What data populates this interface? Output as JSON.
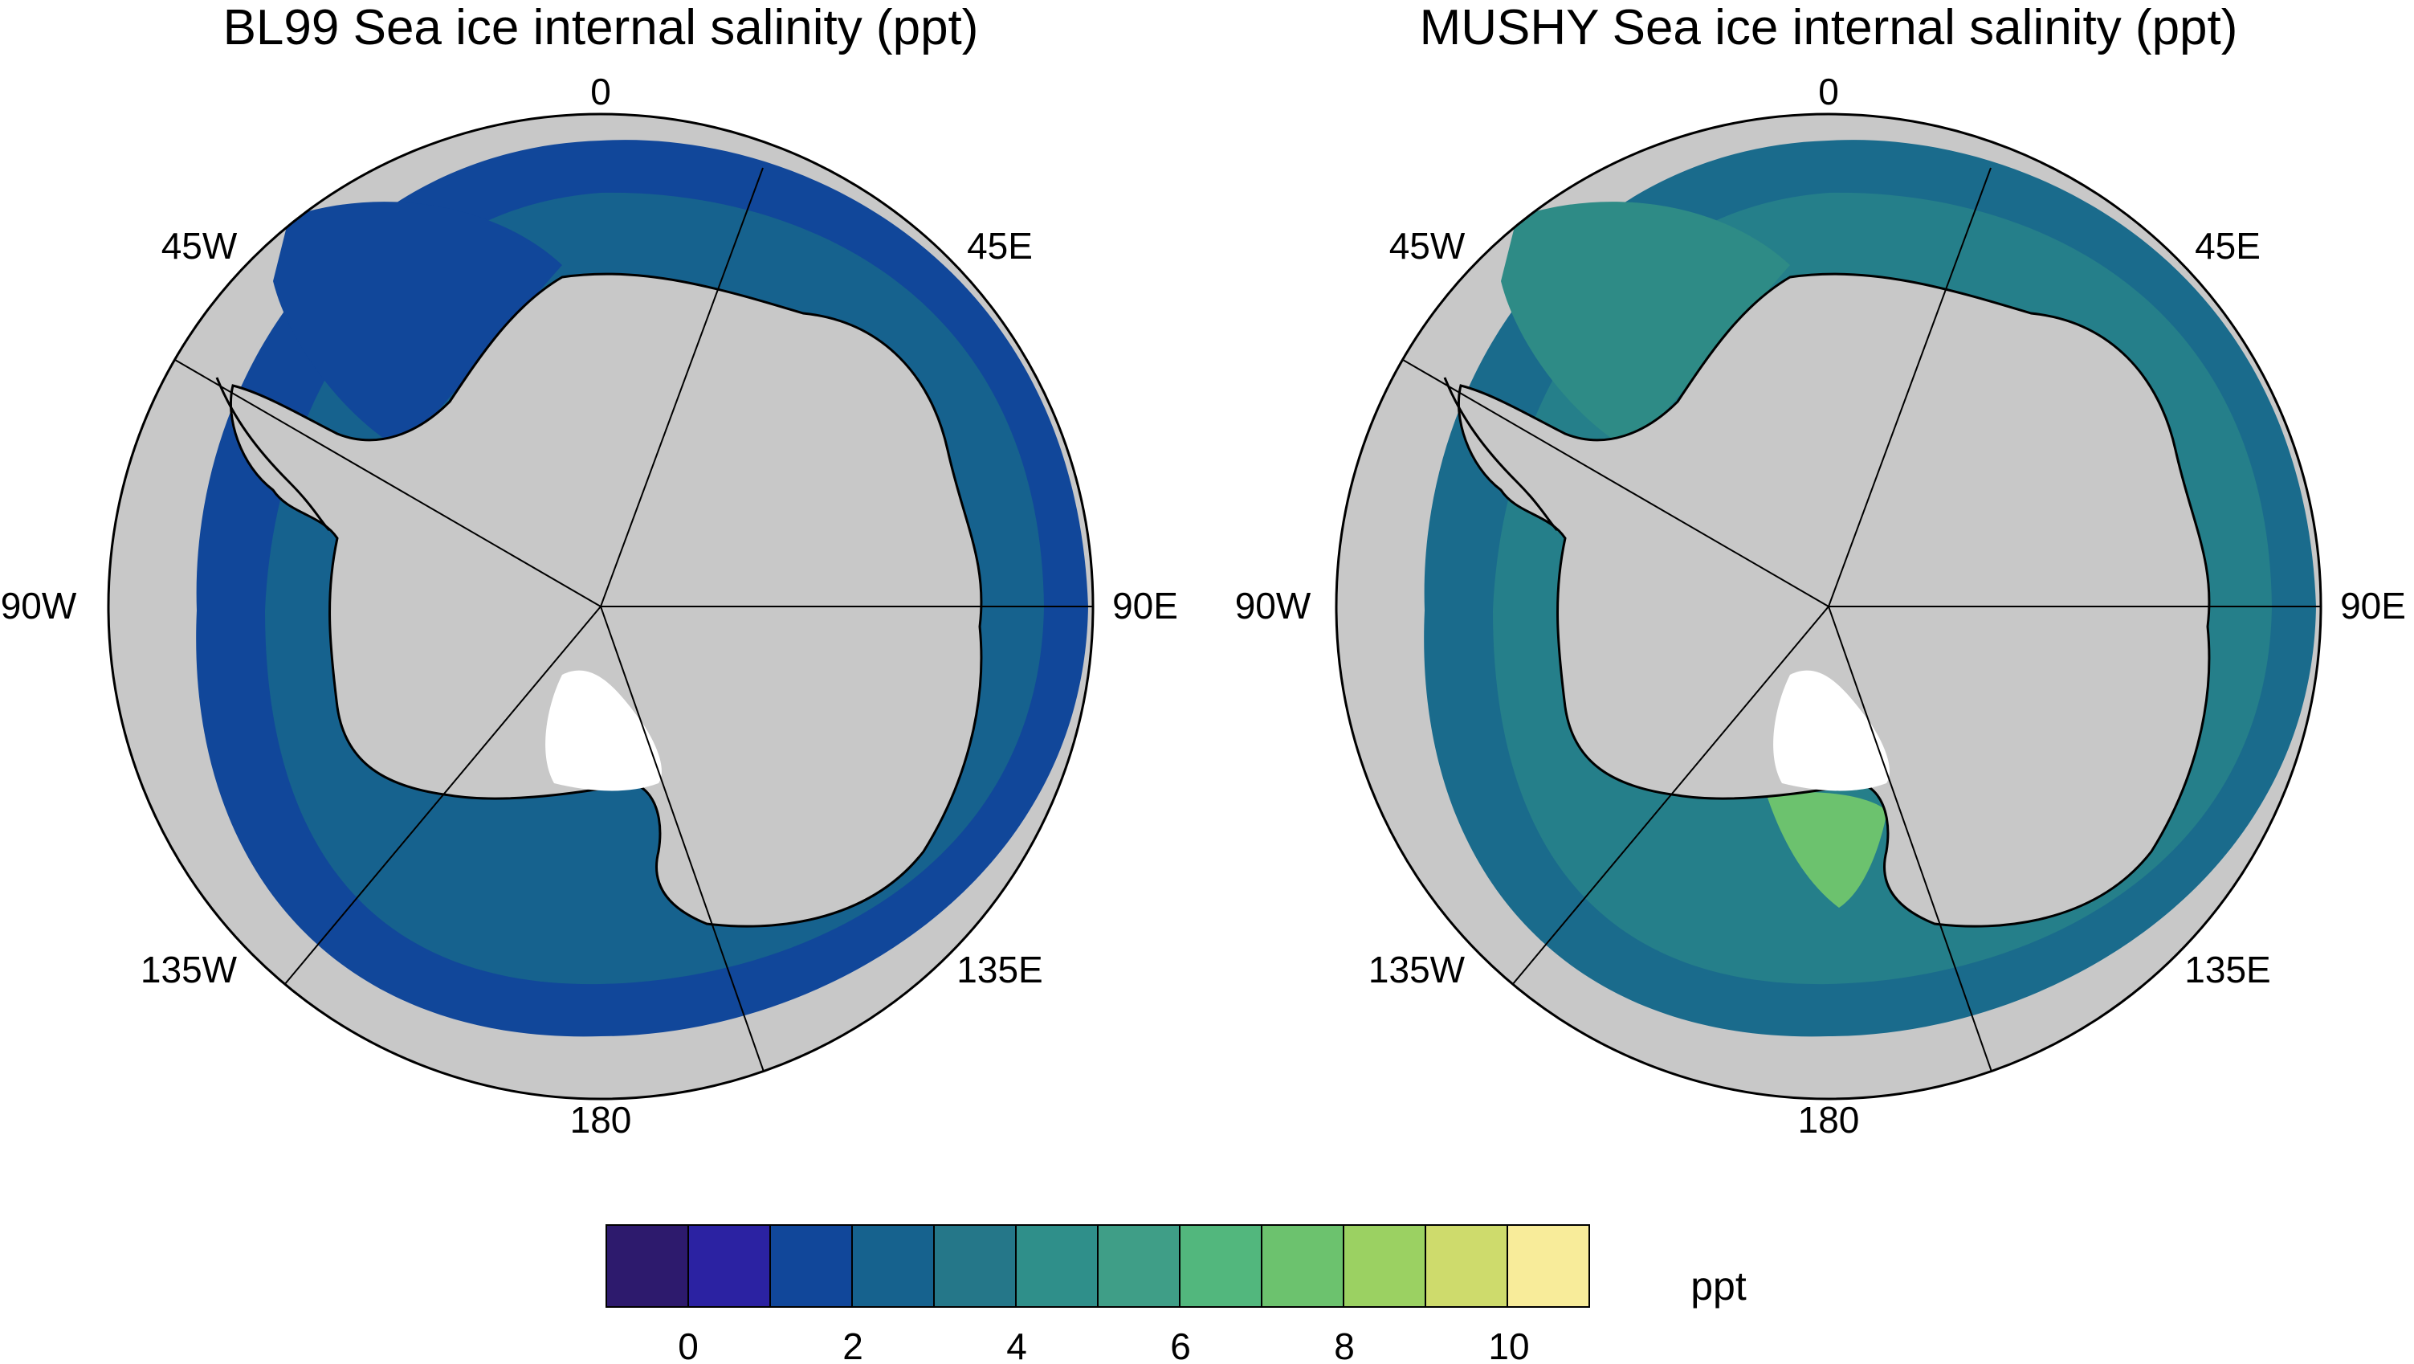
{
  "panels": [
    {
      "id": "bl99",
      "title": "BL99 Sea ice internal salinity (ppt)",
      "ring_colors": [
        "#11479a",
        "#16628e",
        "#11479a"
      ]
    },
    {
      "id": "mushy",
      "title": "MUSHY Sea ice internal salinity (ppt)",
      "ring_colors": [
        "#1a6b8c",
        "#257f8a",
        "#2e8b86"
      ]
    }
  ],
  "longitude_labels": [
    "0",
    "45E",
    "90E",
    "135E",
    "180",
    "135W",
    "90W",
    "45W"
  ],
  "colorbar": {
    "colors": [
      "#2d1a6d",
      "#2b22a2",
      "#11479a",
      "#16628e",
      "#257789",
      "#2f8f8a",
      "#3f9e87",
      "#52b77d",
      "#6cc26e",
      "#9bd162",
      "#cedb6c",
      "#f8ec9a"
    ],
    "tick_labels": [
      "0",
      "2",
      "4",
      "6",
      "8",
      "10"
    ],
    "units": "ppt"
  },
  "colors": {
    "land": "#c8c8c8",
    "ice_shelf_white": "#ffffff",
    "coastline": "#000000",
    "background": "#ffffff"
  }
}
